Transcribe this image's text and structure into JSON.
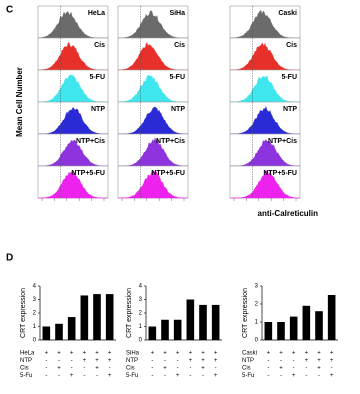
{
  "panel_c": {
    "label": "C",
    "y_label": "Mean Cell Number",
    "x_label": "anti-Calreticulin",
    "cells": [
      "HeLa",
      "SiHa",
      "Caski"
    ],
    "rows": [
      "Cis",
      "5-FU",
      "NTP",
      "NTP+Cis",
      "NTP+5-FU"
    ]
  },
  "panel_d_label": "D",
  "chart_data": [
    {
      "type": "bar",
      "y_label": "CRT expression",
      "categories": [
        null,
        null,
        null,
        null,
        null,
        null
      ],
      "values": [
        1.0,
        1.2,
        1.7,
        3.3,
        3.4,
        3.4
      ],
      "color": "#000000",
      "ylim": [
        0,
        4
      ],
      "yticks": [
        0,
        1,
        2,
        3,
        4
      ],
      "conditions": [
        {
          "label": "HeLa",
          "signs": [
            "+",
            "+",
            "+",
            "+",
            "+",
            "+"
          ]
        },
        {
          "label": "NTP",
          "signs": [
            "-",
            "-",
            "-",
            "+",
            "+",
            "+"
          ]
        },
        {
          "label": "Cis",
          "signs": [
            "-",
            "+",
            "-",
            "-",
            "+",
            "-"
          ]
        },
        {
          "label": "5-Fu",
          "signs": [
            "-",
            "-",
            "+",
            "-",
            "-",
            "+"
          ]
        }
      ]
    },
    {
      "type": "bar",
      "y_label": "CRT expression",
      "categories": [
        null,
        null,
        null,
        null,
        null,
        null
      ],
      "values": [
        1.0,
        1.5,
        1.5,
        3.0,
        2.6,
        2.6
      ],
      "color": "#000000",
      "ylim": [
        0,
        4
      ],
      "yticks": [
        0,
        1,
        2,
        3,
        4
      ],
      "conditions": [
        {
          "label": "SiHa",
          "signs": [
            "+",
            "+",
            "+",
            "+",
            "+",
            "+"
          ]
        },
        {
          "label": "NTP",
          "signs": [
            "-",
            "-",
            "-",
            "+",
            "+",
            "+"
          ]
        },
        {
          "label": "Cis",
          "signs": [
            "-",
            "+",
            "-",
            "-",
            "+",
            "-"
          ]
        },
        {
          "label": "5-Fu",
          "signs": [
            "-",
            "-",
            "+",
            "-",
            "-",
            "+"
          ]
        }
      ]
    },
    {
      "type": "bar",
      "y_label": "CRT expression",
      "categories": [
        null,
        null,
        null,
        null,
        null,
        null
      ],
      "values": [
        1.0,
        1.0,
        1.3,
        1.9,
        1.6,
        2.5
      ],
      "color": "#000000",
      "ylim": [
        0,
        3
      ],
      "yticks": [
        0,
        1,
        2,
        3
      ],
      "conditions": [
        {
          "label": "Caski",
          "signs": [
            "+",
            "+",
            "+",
            "+",
            "+",
            "+"
          ]
        },
        {
          "label": "NTP",
          "signs": [
            "-",
            "-",
            "-",
            "+",
            "+",
            "+"
          ]
        },
        {
          "label": "Cis",
          "signs": [
            "-",
            "+",
            "-",
            "-",
            "+",
            "-"
          ]
        },
        {
          "label": "5-Fu",
          "signs": [
            "-",
            "-",
            "+",
            "-",
            "-",
            "+"
          ]
        }
      ]
    }
  ]
}
